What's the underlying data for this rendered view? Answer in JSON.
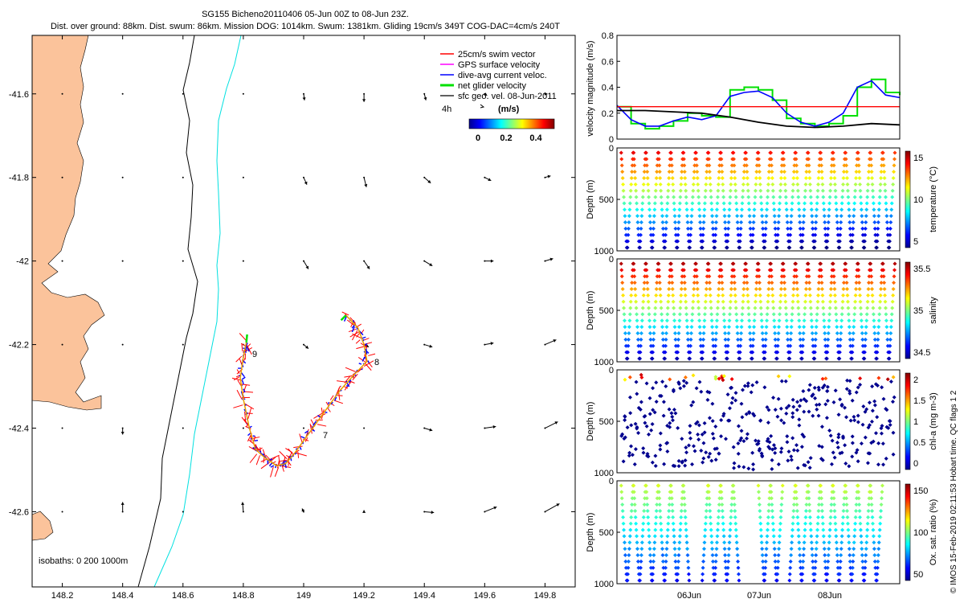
{
  "header": {
    "line1": "SG155 Bicheno20110406 05-Jun 00Z to 08-Jun 23Z.",
    "line2": "Dist. over ground: 88km. Dist. swum: 86km. Mission DOG: 1014km. Swum: 1381km. Gliding 19cm/s 349T COG-DAC=4cm/s 240T"
  },
  "colors": {
    "land": "#fbc39b",
    "swim": "#ff0000",
    "gps": "#ff00ff",
    "dac": "#0000ff",
    "net": "#00e000",
    "geo": "#000000",
    "isobath200": "#000000",
    "isobath1000": "#00e0e0"
  },
  "map": {
    "legend": [
      {
        "label": "25cm/s swim vector",
        "color": "#ff0000"
      },
      {
        "label": "GPS surface velocity",
        "color": "#ff00ff"
      },
      {
        "label": "dive-avg current veloc.",
        "color": "#0000ff"
      },
      {
        "label": "net glider velocity",
        "color": "#00e000"
      },
      {
        "label": "sfc geo. vel. 08-Jun-2011",
        "color": "#000000"
      }
    ],
    "scale_label": "4h",
    "colorbar_title": "(m/s)",
    "colorbar_ticks": [
      "0",
      "0.2",
      "0.4"
    ],
    "isobath_label": "isobaths: 0   200  1000m",
    "track_labels": [
      "9",
      "8",
      "7"
    ]
  },
  "chart_data": [
    {
      "type": "map",
      "xlim": [
        148.1,
        149.9
      ],
      "ylim": [
        -42.78,
        -41.46
      ],
      "xticks": [
        148.2,
        148.4,
        148.6,
        148.8,
        149.0,
        149.2,
        149.4,
        149.6,
        149.8
      ],
      "xtick_labels": [
        "148.2",
        "148.4",
        "148.6",
        "148.8",
        "149",
        "149.2",
        "149.4",
        "149.6",
        "149.8"
      ],
      "yticks": [
        -41.6,
        -41.8,
        -42.0,
        -42.2,
        -42.4,
        -42.6
      ],
      "ytick_labels": [
        "-41.6",
        "-41.8",
        "-42",
        "-42.2",
        "-42.4",
        "-42.6"
      ],
      "track": [
        [
          148.81,
          -42.195
        ],
        [
          148.8,
          -42.23
        ],
        [
          148.79,
          -42.28
        ],
        [
          148.8,
          -42.33
        ],
        [
          148.82,
          -42.4
        ],
        [
          148.84,
          -42.45
        ],
        [
          148.87,
          -42.47
        ],
        [
          148.91,
          -42.49
        ],
        [
          148.94,
          -42.485
        ],
        [
          148.97,
          -42.46
        ],
        [
          149.02,
          -42.41
        ],
        [
          149.07,
          -42.36
        ],
        [
          149.12,
          -42.31
        ],
        [
          149.17,
          -42.27
        ],
        [
          149.21,
          -42.24
        ],
        [
          149.2,
          -42.2
        ],
        [
          149.18,
          -42.16
        ],
        [
          149.14,
          -42.13
        ]
      ],
      "geo_vectors": {
        "lons": [
          148.2,
          148.4,
          148.6,
          148.8,
          149.0,
          149.2,
          149.4,
          149.6,
          149.8
        ],
        "lats": [
          -41.6,
          -41.8,
          -42.0,
          -42.2,
          -42.4,
          -42.6
        ],
        "note": "surface geostrophic velocity arrows (schematic)"
      }
    },
    {
      "type": "line",
      "title": "",
      "ylabel": "velocity magnitude (m/s)",
      "ylim": [
        0,
        0.8
      ],
      "yticks": [
        "0",
        "0.2",
        "0.4",
        "0.6",
        "0.8"
      ],
      "series": [
        {
          "name": "net glider velocity",
          "color": "#00e000",
          "x": [
            0,
            0.05,
            0.1,
            0.15,
            0.2,
            0.25,
            0.3,
            0.35,
            0.4,
            0.45,
            0.5,
            0.55,
            0.6,
            0.65,
            0.7,
            0.75,
            0.8,
            0.85,
            0.9,
            0.95,
            1
          ],
          "values": [
            0.25,
            0.12,
            0.08,
            0.1,
            0.14,
            0.2,
            0.18,
            0.17,
            0.38,
            0.4,
            0.38,
            0.3,
            0.16,
            0.12,
            0.1,
            0.12,
            0.18,
            0.4,
            0.46,
            0.36,
            0.34
          ]
        },
        {
          "name": "dive-avg current veloc.",
          "color": "#0000ff",
          "x": [
            0,
            0.05,
            0.1,
            0.15,
            0.2,
            0.25,
            0.3,
            0.35,
            0.4,
            0.45,
            0.5,
            0.55,
            0.6,
            0.65,
            0.7,
            0.75,
            0.8,
            0.85,
            0.9,
            0.95,
            1
          ],
          "values": [
            0.26,
            0.15,
            0.1,
            0.1,
            0.14,
            0.17,
            0.15,
            0.18,
            0.33,
            0.36,
            0.37,
            0.32,
            0.2,
            0.13,
            0.1,
            0.13,
            0.2,
            0.4,
            0.45,
            0.34,
            0.32
          ]
        },
        {
          "name": "25cm/s swim",
          "color": "#ff0000",
          "x": [
            0,
            1
          ],
          "values": [
            0.25,
            0.25
          ]
        },
        {
          "name": "sfc geo.",
          "color": "#000000",
          "x": [
            0,
            0.1,
            0.2,
            0.3,
            0.4,
            0.5,
            0.6,
            0.7,
            0.8,
            0.9,
            1
          ],
          "values": [
            0.22,
            0.22,
            0.21,
            0.2,
            0.17,
            0.13,
            0.1,
            0.09,
            0.1,
            0.12,
            0.11
          ]
        }
      ]
    },
    {
      "type": "scatter",
      "ylabel": "Depth (m)",
      "yticks": [
        "0",
        "500",
        "1000"
      ],
      "colorbar_label": "temperature (°C)",
      "colorbar_ticks": [
        "15",
        "10",
        "5"
      ],
      "colormap": "jet"
    },
    {
      "type": "scatter",
      "ylabel": "Depth (m)",
      "yticks": [
        "0",
        "500",
        "1000"
      ],
      "colorbar_label": "salinity",
      "colorbar_ticks": [
        "35.5",
        "35",
        "34.5"
      ],
      "colormap": "jet"
    },
    {
      "type": "scatter",
      "ylabel": "Depth (m)",
      "yticks": [
        "0",
        "500",
        "1000"
      ],
      "colorbar_label": "chl-a (mg m-3)",
      "colorbar_ticks": [
        "2",
        "1.5",
        "1",
        "0.5",
        "0"
      ],
      "colormap": "jet"
    },
    {
      "type": "scatter",
      "ylabel": "Depth (m)",
      "yticks": [
        "0",
        "500",
        "1000"
      ],
      "colorbar_label": "Ox. sat. ratio (%)",
      "colorbar_ticks": [
        "150",
        "100",
        "50"
      ],
      "colormap": "jet",
      "xtick_labels": [
        "06Jun",
        "07Jun",
        "08Jun"
      ]
    }
  ],
  "footer": {
    "credit": "© IMOS 15-Feb-2019 02:11:53 Hobart time. QC flags 1  2"
  }
}
